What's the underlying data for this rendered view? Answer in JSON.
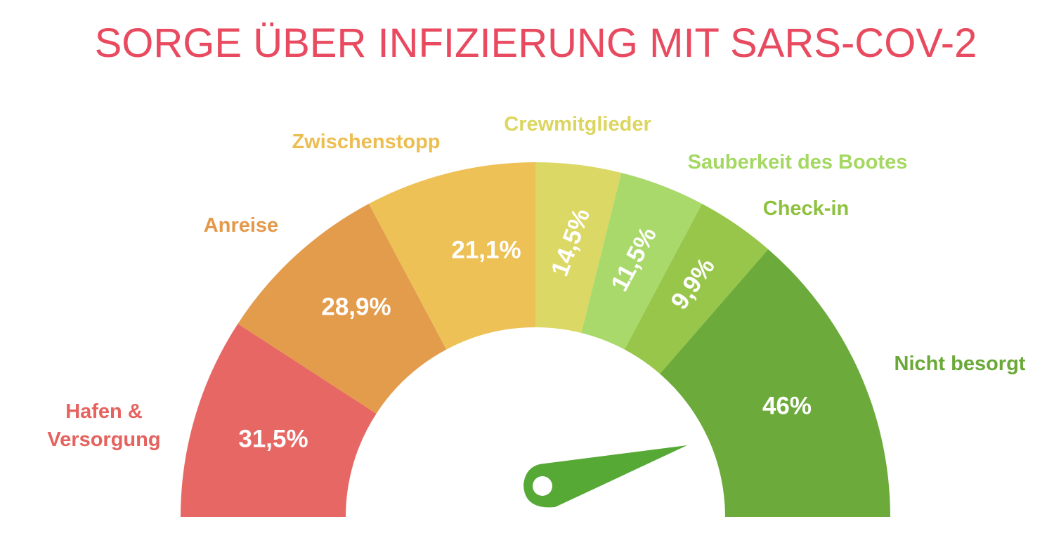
{
  "chart_data": {
    "type": "gauge",
    "title": "SORGE ÜBER INFIZIERUNG MIT SARS-COV-2",
    "categories": [
      "Hafen & Versorgung",
      "Anreise",
      "Zwischenstopp",
      "Crewmitglieder",
      "Sauberkeit des Bootes",
      "Check-in",
      "Nicht besorgt"
    ],
    "category_lines": [
      [
        "Hafen &",
        "Versorgung"
      ],
      [
        "Anreise"
      ],
      [
        "Zwischenstopp"
      ],
      [
        "Crewmitglieder"
      ],
      [
        "Sauberkeit des Bootes"
      ],
      [
        "Check-in"
      ],
      [
        "Nicht besorgt"
      ]
    ],
    "values": [
      31.5,
      28.9,
      21.1,
      14.5,
      11.5,
      9.9,
      46
    ],
    "value_labels": [
      "31,5%",
      "28,9%",
      "21,1%",
      "14,5%",
      "11,5%",
      "9,9%",
      "46%"
    ],
    "label_colors": [
      "#e5625e",
      "#e4994a",
      "#ecbd51",
      "#dcd660",
      "#a4d862",
      "#8dc13e",
      "#6aa838"
    ],
    "segment_colors": [
      "#e66763",
      "#e39b4c",
      "#edc156",
      "#dbd865",
      "#a9d96b",
      "#98c64a",
      "#6cab3b"
    ],
    "needle_color": "#56a935",
    "title_color": "#e84a5f"
  }
}
